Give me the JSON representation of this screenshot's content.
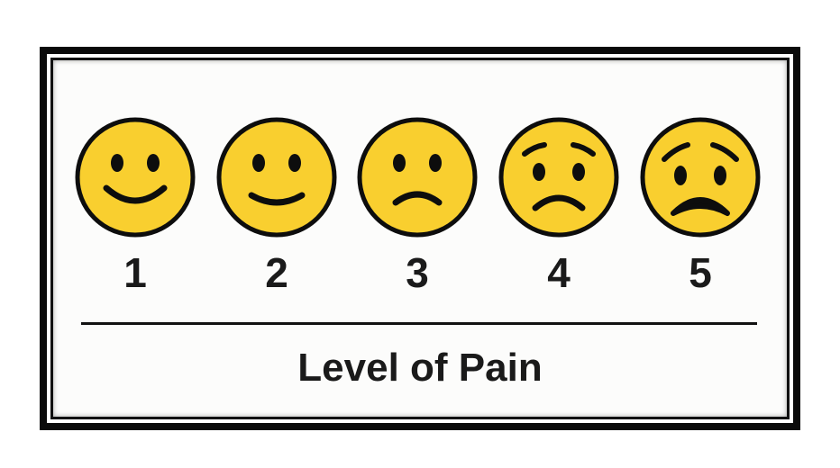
{
  "scale": {
    "levels": [
      {
        "label": "1",
        "expression": "smile"
      },
      {
        "label": "2",
        "expression": "slight-smile"
      },
      {
        "label": "3",
        "expression": "slight-frown"
      },
      {
        "label": "4",
        "expression": "worried"
      },
      {
        "label": "5",
        "expression": "sad"
      }
    ],
    "title": "Level of Pain"
  },
  "colors": {
    "face": "#f9cf2f",
    "outline": "#0d0d0d",
    "frame": "#0a0a0a"
  }
}
